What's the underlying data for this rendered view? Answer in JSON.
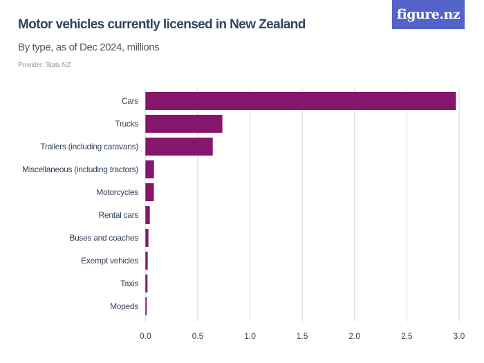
{
  "header": {
    "title": "Motor vehicles currently licensed in New Zealand",
    "subtitle": "By type, as of Dec 2024, millions",
    "provider": "Provider: Stats NZ",
    "logo_text": "figure.nz"
  },
  "colors": {
    "bar": "#86166d",
    "logo_bg": "#5363c8",
    "title": "#34435e"
  },
  "chart_data": {
    "type": "bar",
    "orientation": "horizontal",
    "title": "Motor vehicles currently licensed in New Zealand",
    "subtitle": "By type, as of Dec 2024, millions",
    "categories": [
      "Cars",
      "Trucks",
      "Trailers (including caravans)",
      "Miscellaneous (including tractors)",
      "Motorcycles",
      "Rental cars",
      "Buses and coaches",
      "Exempt vehicles",
      "Taxis",
      "Mopeds"
    ],
    "values": [
      2.97,
      0.736,
      0.644,
      0.082,
      0.081,
      0.042,
      0.029,
      0.022,
      0.02,
      0.013
    ],
    "xlim": [
      0,
      3.0
    ],
    "xticks": [
      "0.0",
      "0.5",
      "1.0",
      "1.5",
      "2.0",
      "2.5",
      "3.0"
    ],
    "xlabel": "",
    "ylabel": "",
    "grid": true
  }
}
